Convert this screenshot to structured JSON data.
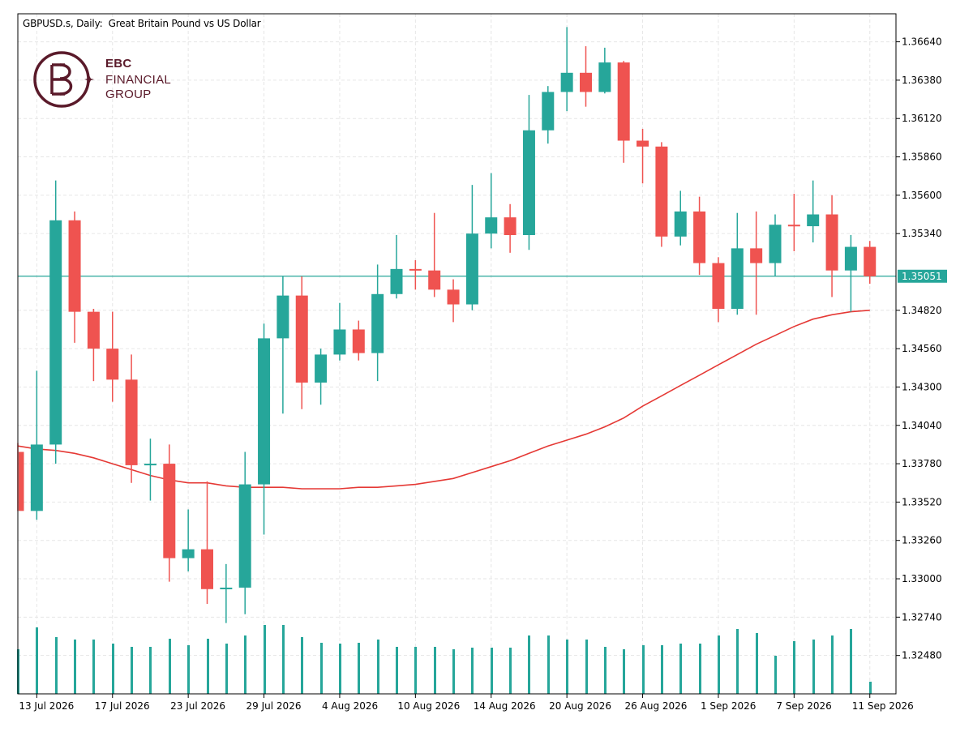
{
  "header": {
    "title": "GBPUSD.s, Daily:  Great Britain Pound vs US Dollar"
  },
  "logo": {
    "line1": "EBC",
    "line2": "FINANCIAL",
    "line3": "GROUP",
    "icon": "ebc-monogram-icon"
  },
  "colors": {
    "bull": "#26a69a",
    "bear": "#ef5350",
    "ma": "#e53935",
    "price_line": "#26a69a",
    "grid": "#e6e6e6",
    "logo": "#5a1a2a"
  },
  "chart_data": {
    "type": "candlestick",
    "symbol": "GBPUSD.s",
    "timeframe": "Daily",
    "ylim": [
      1.3222,
      1.3683
    ],
    "y_ticks": [
      "1.36640",
      "1.36380",
      "1.36120",
      "1.35860",
      "1.35600",
      "1.35340",
      "1.34820",
      "1.34560",
      "1.34300",
      "1.34040",
      "1.33780",
      "1.33520",
      "1.33260",
      "1.33000",
      "1.32740",
      "1.32480"
    ],
    "x_labels": [
      "13 Jul 2026",
      "17 Jul 2026",
      "23 Jul 2026",
      "29 Jul 2026",
      "4 Aug 2026",
      "10 Aug 2026",
      "14 Aug 2026",
      "20 Aug 2026",
      "26 Aug 2026",
      "1 Sep 2026",
      "7 Sep 2026",
      "11 Sep 2026"
    ],
    "x_label_index": [
      1,
      5,
      9,
      13,
      17,
      21,
      25,
      29,
      33,
      37,
      41,
      45
    ],
    "current_price": 1.35051,
    "current_price_label": "1.35051",
    "candles": [
      {
        "o": 1.3386,
        "h": 1.3392,
        "l": 1.3346,
        "c": 1.3346
      },
      {
        "o": 1.3346,
        "h": 1.3441,
        "l": 1.334,
        "c": 1.3391
      },
      {
        "o": 1.3391,
        "h": 1.357,
        "l": 1.3378,
        "c": 1.3543
      },
      {
        "o": 1.3543,
        "h": 1.3549,
        "l": 1.346,
        "c": 1.3481
      },
      {
        "o": 1.3481,
        "h": 1.3483,
        "l": 1.3434,
        "c": 1.3456
      },
      {
        "o": 1.3456,
        "h": 1.3481,
        "l": 1.342,
        "c": 1.3435
      },
      {
        "o": 1.3435,
        "h": 1.3452,
        "l": 1.3365,
        "c": 1.3377
      },
      {
        "o": 1.3377,
        "h": 1.3395,
        "l": 1.3353,
        "c": 1.3378
      },
      {
        "o": 1.3378,
        "h": 1.3391,
        "l": 1.3298,
        "c": 1.3314
      },
      {
        "o": 1.3314,
        "h": 1.3347,
        "l": 1.3305,
        "c": 1.332
      },
      {
        "o": 1.332,
        "h": 1.3366,
        "l": 1.3283,
        "c": 1.3293
      },
      {
        "o": 1.3293,
        "h": 1.331,
        "l": 1.327,
        "c": 1.3294
      },
      {
        "o": 1.3294,
        "h": 1.3386,
        "l": 1.3276,
        "c": 1.3364
      },
      {
        "o": 1.3364,
        "h": 1.3473,
        "l": 1.333,
        "c": 1.3463
      },
      {
        "o": 1.3463,
        "h": 1.3505,
        "l": 1.3412,
        "c": 1.3492
      },
      {
        "o": 1.3492,
        "h": 1.3505,
        "l": 1.3415,
        "c": 1.3433
      },
      {
        "o": 1.3433,
        "h": 1.3456,
        "l": 1.3418,
        "c": 1.3452
      },
      {
        "o": 1.3452,
        "h": 1.3487,
        "l": 1.3448,
        "c": 1.3469
      },
      {
        "o": 1.3469,
        "h": 1.3475,
        "l": 1.3448,
        "c": 1.3453
      },
      {
        "o": 1.3453,
        "h": 1.3513,
        "l": 1.3434,
        "c": 1.3493
      },
      {
        "o": 1.3493,
        "h": 1.3533,
        "l": 1.349,
        "c": 1.351
      },
      {
        "o": 1.351,
        "h": 1.3516,
        "l": 1.3496,
        "c": 1.3509
      },
      {
        "o": 1.3509,
        "h": 1.3548,
        "l": 1.3491,
        "c": 1.3496
      },
      {
        "o": 1.3496,
        "h": 1.3503,
        "l": 1.3474,
        "c": 1.3486
      },
      {
        "o": 1.3486,
        "h": 1.3567,
        "l": 1.3482,
        "c": 1.3534
      },
      {
        "o": 1.3534,
        "h": 1.3575,
        "l": 1.3524,
        "c": 1.3545
      },
      {
        "o": 1.3545,
        "h": 1.3554,
        "l": 1.3521,
        "c": 1.3533
      },
      {
        "o": 1.3533,
        "h": 1.3628,
        "l": 1.3523,
        "c": 1.3604
      },
      {
        "o": 1.3604,
        "h": 1.3634,
        "l": 1.3595,
        "c": 1.363
      },
      {
        "o": 1.363,
        "h": 1.3674,
        "l": 1.3617,
        "c": 1.3643
      },
      {
        "o": 1.3643,
        "h": 1.3661,
        "l": 1.362,
        "c": 1.363
      },
      {
        "o": 1.363,
        "h": 1.366,
        "l": 1.3629,
        "c": 1.365
      },
      {
        "o": 1.365,
        "h": 1.3651,
        "l": 1.3582,
        "c": 1.3597
      },
      {
        "o": 1.3597,
        "h": 1.3605,
        "l": 1.3568,
        "c": 1.3593
      },
      {
        "o": 1.3593,
        "h": 1.3596,
        "l": 1.3525,
        "c": 1.3532
      },
      {
        "o": 1.3532,
        "h": 1.3563,
        "l": 1.3526,
        "c": 1.3549
      },
      {
        "o": 1.3549,
        "h": 1.3559,
        "l": 1.3506,
        "c": 1.3514
      },
      {
        "o": 1.3514,
        "h": 1.3518,
        "l": 1.3474,
        "c": 1.3483
      },
      {
        "o": 1.3483,
        "h": 1.3548,
        "l": 1.3479,
        "c": 1.3524
      },
      {
        "o": 1.3524,
        "h": 1.3549,
        "l": 1.3479,
        "c": 1.3514
      },
      {
        "o": 1.3514,
        "h": 1.3547,
        "l": 1.3505,
        "c": 1.354
      },
      {
        "o": 1.354,
        "h": 1.3561,
        "l": 1.3522,
        "c": 1.3539
      },
      {
        "o": 1.3539,
        "h": 1.357,
        "l": 1.3528,
        "c": 1.3547
      },
      {
        "o": 1.3547,
        "h": 1.356,
        "l": 1.3491,
        "c": 1.3509
      },
      {
        "o": 1.3509,
        "h": 1.3533,
        "l": 1.3481,
        "c": 1.3525
      },
      {
        "o": 1.3525,
        "h": 1.3529,
        "l": 1.35,
        "c": 1.3505
      }
    ],
    "moving_average": [
      1.339,
      1.3388,
      1.3387,
      1.3385,
      1.3382,
      1.3378,
      1.3374,
      1.337,
      1.3367,
      1.3365,
      1.3365,
      1.3363,
      1.3362,
      1.3362,
      1.3362,
      1.3361,
      1.3361,
      1.3361,
      1.3362,
      1.3362,
      1.3363,
      1.3364,
      1.3366,
      1.3368,
      1.3372,
      1.3376,
      1.338,
      1.3385,
      1.339,
      1.3394,
      1.3398,
      1.3403,
      1.3409,
      1.3417,
      1.3424,
      1.3431,
      1.3438,
      1.3445,
      1.3452,
      1.3459,
      1.3465,
      1.3471,
      1.3476,
      1.3479,
      1.3481,
      1.3482
    ],
    "volume": [
      0.55,
      0.82,
      0.7,
      0.67,
      0.67,
      0.62,
      0.58,
      0.58,
      0.68,
      0.6,
      0.68,
      0.62,
      0.72,
      0.85,
      0.85,
      0.7,
      0.63,
      0.62,
      0.63,
      0.67,
      0.58,
      0.58,
      0.58,
      0.55,
      0.57,
      0.57,
      0.57,
      0.72,
      0.72,
      0.67,
      0.67,
      0.58,
      0.55,
      0.6,
      0.6,
      0.62,
      0.62,
      0.72,
      0.8,
      0.75,
      0.47,
      0.65,
      0.67,
      0.72,
      0.8,
      0.15
    ]
  }
}
